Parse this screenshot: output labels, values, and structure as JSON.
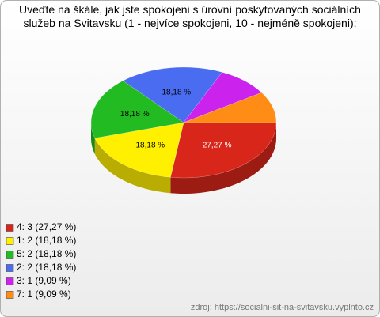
{
  "chart_data": {
    "type": "pie",
    "title": "Uveďte na škále, jak jste spokojeni s úrovní poskytovaných sociálních služeb na Svitavsku (1 - nejvíce spokojeni, 10 - nejméně spokojeni):",
    "categories": [
      "4: 3 (27,27 %)",
      "1: 2 (18,18 %)",
      "5: 2 (18,18 %)",
      "2: 2 (18,18 %)",
      "3: 1 (9,09 %)",
      "7: 1 (9,09 %)"
    ],
    "values": [
      3,
      2,
      2,
      2,
      1,
      1
    ],
    "value_labels": [
      "27,27 %",
      "18,18 %",
      "18,18 %",
      "18,18 %",
      null,
      null
    ],
    "colors": [
      "#d8261a",
      "#fff000",
      "#22bb22",
      "#4a6cf0",
      "#cc22ee",
      "#ff8c14"
    ],
    "legend": "bottom-left",
    "source": "zdroj: https://socialni-sit-na-svitavsku.vyplnto.cz"
  }
}
